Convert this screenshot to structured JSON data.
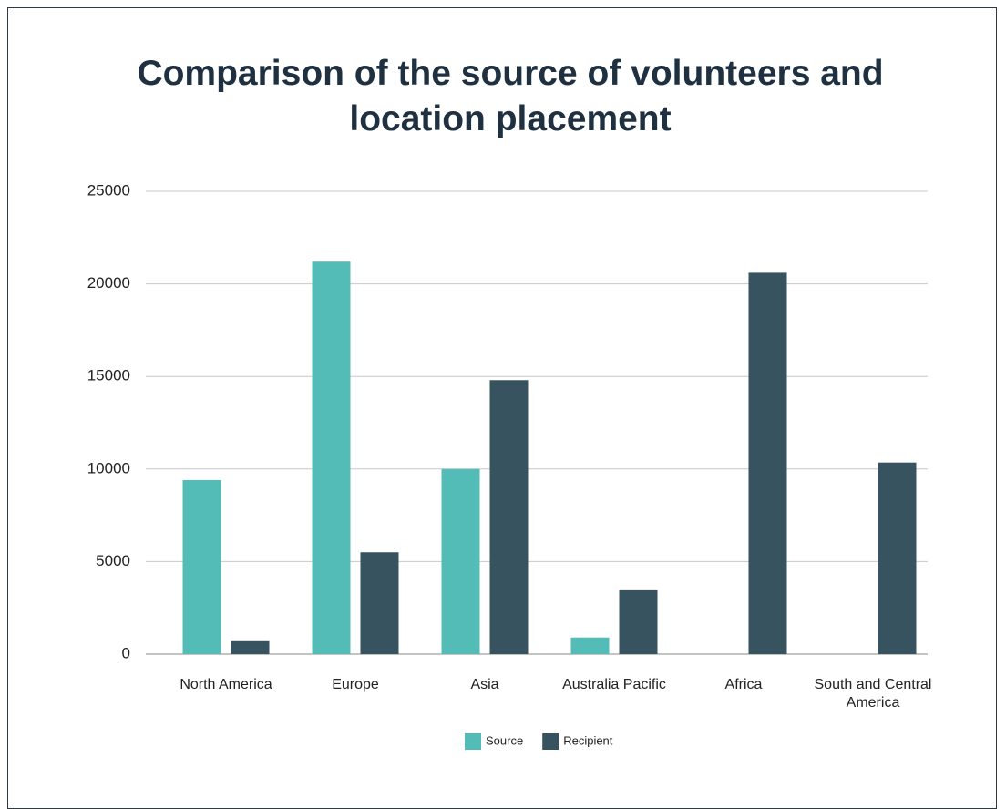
{
  "chart_data": {
    "type": "bar",
    "title": "Comparison of the source of volunteers and location placement",
    "categories": [
      "North America",
      "Europe",
      "Asia",
      "Australia Pacific",
      "Africa",
      "South and Central America"
    ],
    "series": [
      {
        "name": "Source",
        "color": "#54bcb6",
        "values": [
          9400,
          21200,
          10000,
          900,
          0,
          0
        ]
      },
      {
        "name": "Recipient",
        "color": "#37535f",
        "values": [
          700,
          5500,
          14800,
          3450,
          20600,
          10350
        ]
      }
    ],
    "ylim": [
      0,
      25000
    ],
    "yticks": [
      0,
      5000,
      10000,
      15000,
      20000,
      25000
    ],
    "grid": true,
    "legend": "bottom"
  }
}
